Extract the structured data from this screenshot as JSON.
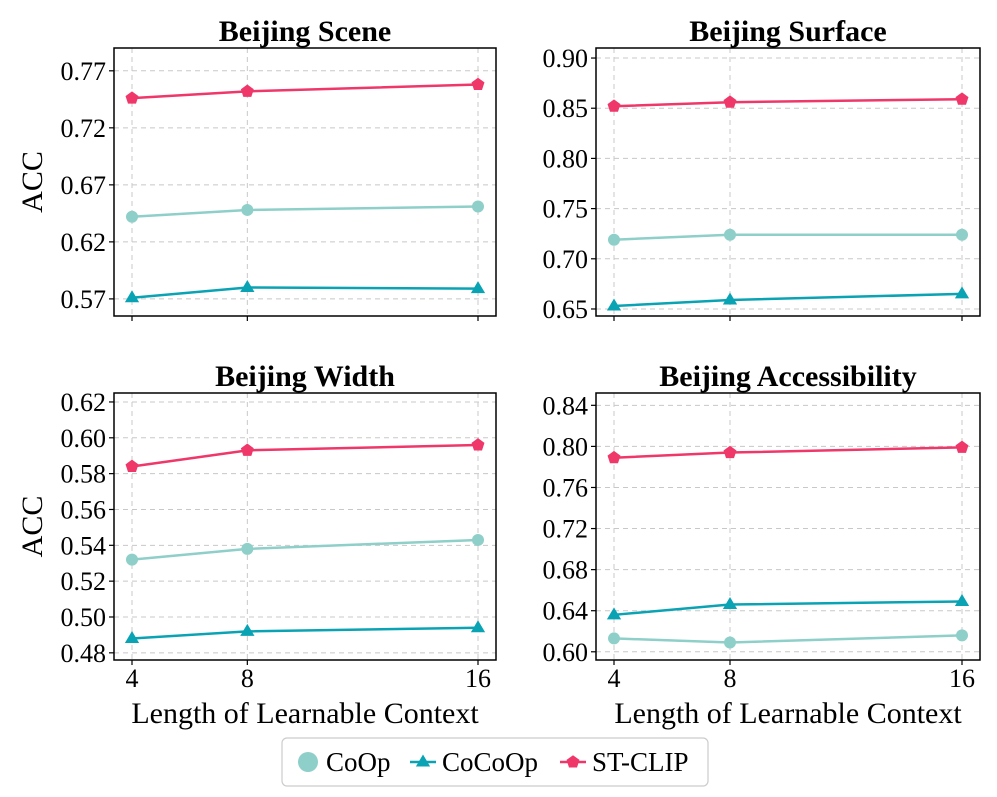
{
  "chart_data": [
    {
      "type": "line",
      "title": "Beijing Scene",
      "xlabel": "",
      "ylabel": "ACC",
      "x": [
        4,
        8,
        16
      ],
      "xticks": [
        "4",
        "8",
        "16"
      ],
      "ylim": [
        0.555,
        0.79
      ],
      "yticks": [
        "0.57",
        "0.62",
        "0.67",
        "0.72",
        "0.77"
      ],
      "series": [
        {
          "name": "CoOp",
          "values": [
            0.642,
            0.648,
            0.651
          ]
        },
        {
          "name": "CoCoOp",
          "values": [
            0.571,
            0.58,
            0.579
          ]
        },
        {
          "name": "ST-CLIP",
          "values": [
            0.746,
            0.752,
            0.758
          ]
        }
      ]
    },
    {
      "type": "line",
      "title": "Beijing Surface",
      "xlabel": "",
      "ylabel": "",
      "x": [
        4,
        8,
        16
      ],
      "xticks": [
        "4",
        "8",
        "16"
      ],
      "ylim": [
        0.643,
        0.91
      ],
      "yticks": [
        "0.65",
        "0.70",
        "0.75",
        "0.80",
        "0.85",
        "0.90"
      ],
      "series": [
        {
          "name": "CoOp",
          "values": [
            0.719,
            0.724,
            0.724
          ]
        },
        {
          "name": "CoCoOp",
          "values": [
            0.653,
            0.659,
            0.665
          ]
        },
        {
          "name": "ST-CLIP",
          "values": [
            0.852,
            0.856,
            0.859
          ]
        }
      ]
    },
    {
      "type": "line",
      "title": "Beijing Width",
      "xlabel": "Length of Learnable Context",
      "ylabel": "ACC",
      "x": [
        4,
        8,
        16
      ],
      "xticks": [
        "4",
        "8",
        "16"
      ],
      "ylim": [
        0.476,
        0.625
      ],
      "yticks": [
        "0.48",
        "0.50",
        "0.52",
        "0.54",
        "0.56",
        "0.58",
        "0.60",
        "0.62"
      ],
      "series": [
        {
          "name": "CoOp",
          "values": [
            0.532,
            0.538,
            0.543
          ]
        },
        {
          "name": "CoCoOp",
          "values": [
            0.488,
            0.492,
            0.494
          ]
        },
        {
          "name": "ST-CLIP",
          "values": [
            0.584,
            0.593,
            0.596
          ]
        }
      ]
    },
    {
      "type": "line",
      "title": "Beijing Accessibility",
      "xlabel": "Length of Learnable Context",
      "ylabel": "",
      "x": [
        4,
        8,
        16
      ],
      "xticks": [
        "4",
        "8",
        "16"
      ],
      "ylim": [
        0.592,
        0.852
      ],
      "yticks": [
        "0.60",
        "0.64",
        "0.68",
        "0.72",
        "0.76",
        "0.80",
        "0.84"
      ],
      "series": [
        {
          "name": "CoOp",
          "values": [
            0.613,
            0.609,
            0.616
          ]
        },
        {
          "name": "CoCoOp",
          "values": [
            0.636,
            0.646,
            0.649
          ]
        },
        {
          "name": "ST-CLIP",
          "values": [
            0.789,
            0.794,
            0.799
          ]
        }
      ]
    }
  ],
  "legend": {
    "position": "bottom-center",
    "items": [
      {
        "name": "CoOp",
        "color": "#8ECFC9",
        "marker": "circle"
      },
      {
        "name": "CoCoOp",
        "color": "#0AA3B4",
        "marker": "triangle"
      },
      {
        "name": "ST-CLIP",
        "color": "#EF3769",
        "marker": "pentagon"
      }
    ]
  },
  "series_colors": {
    "CoOp": "#8ECFC9",
    "CoCoOp": "#0AA3B4",
    "ST-CLIP": "#EF3769"
  },
  "series_markers": {
    "CoOp": "circle",
    "CoCoOp": "triangle",
    "ST-CLIP": "pentagon"
  }
}
